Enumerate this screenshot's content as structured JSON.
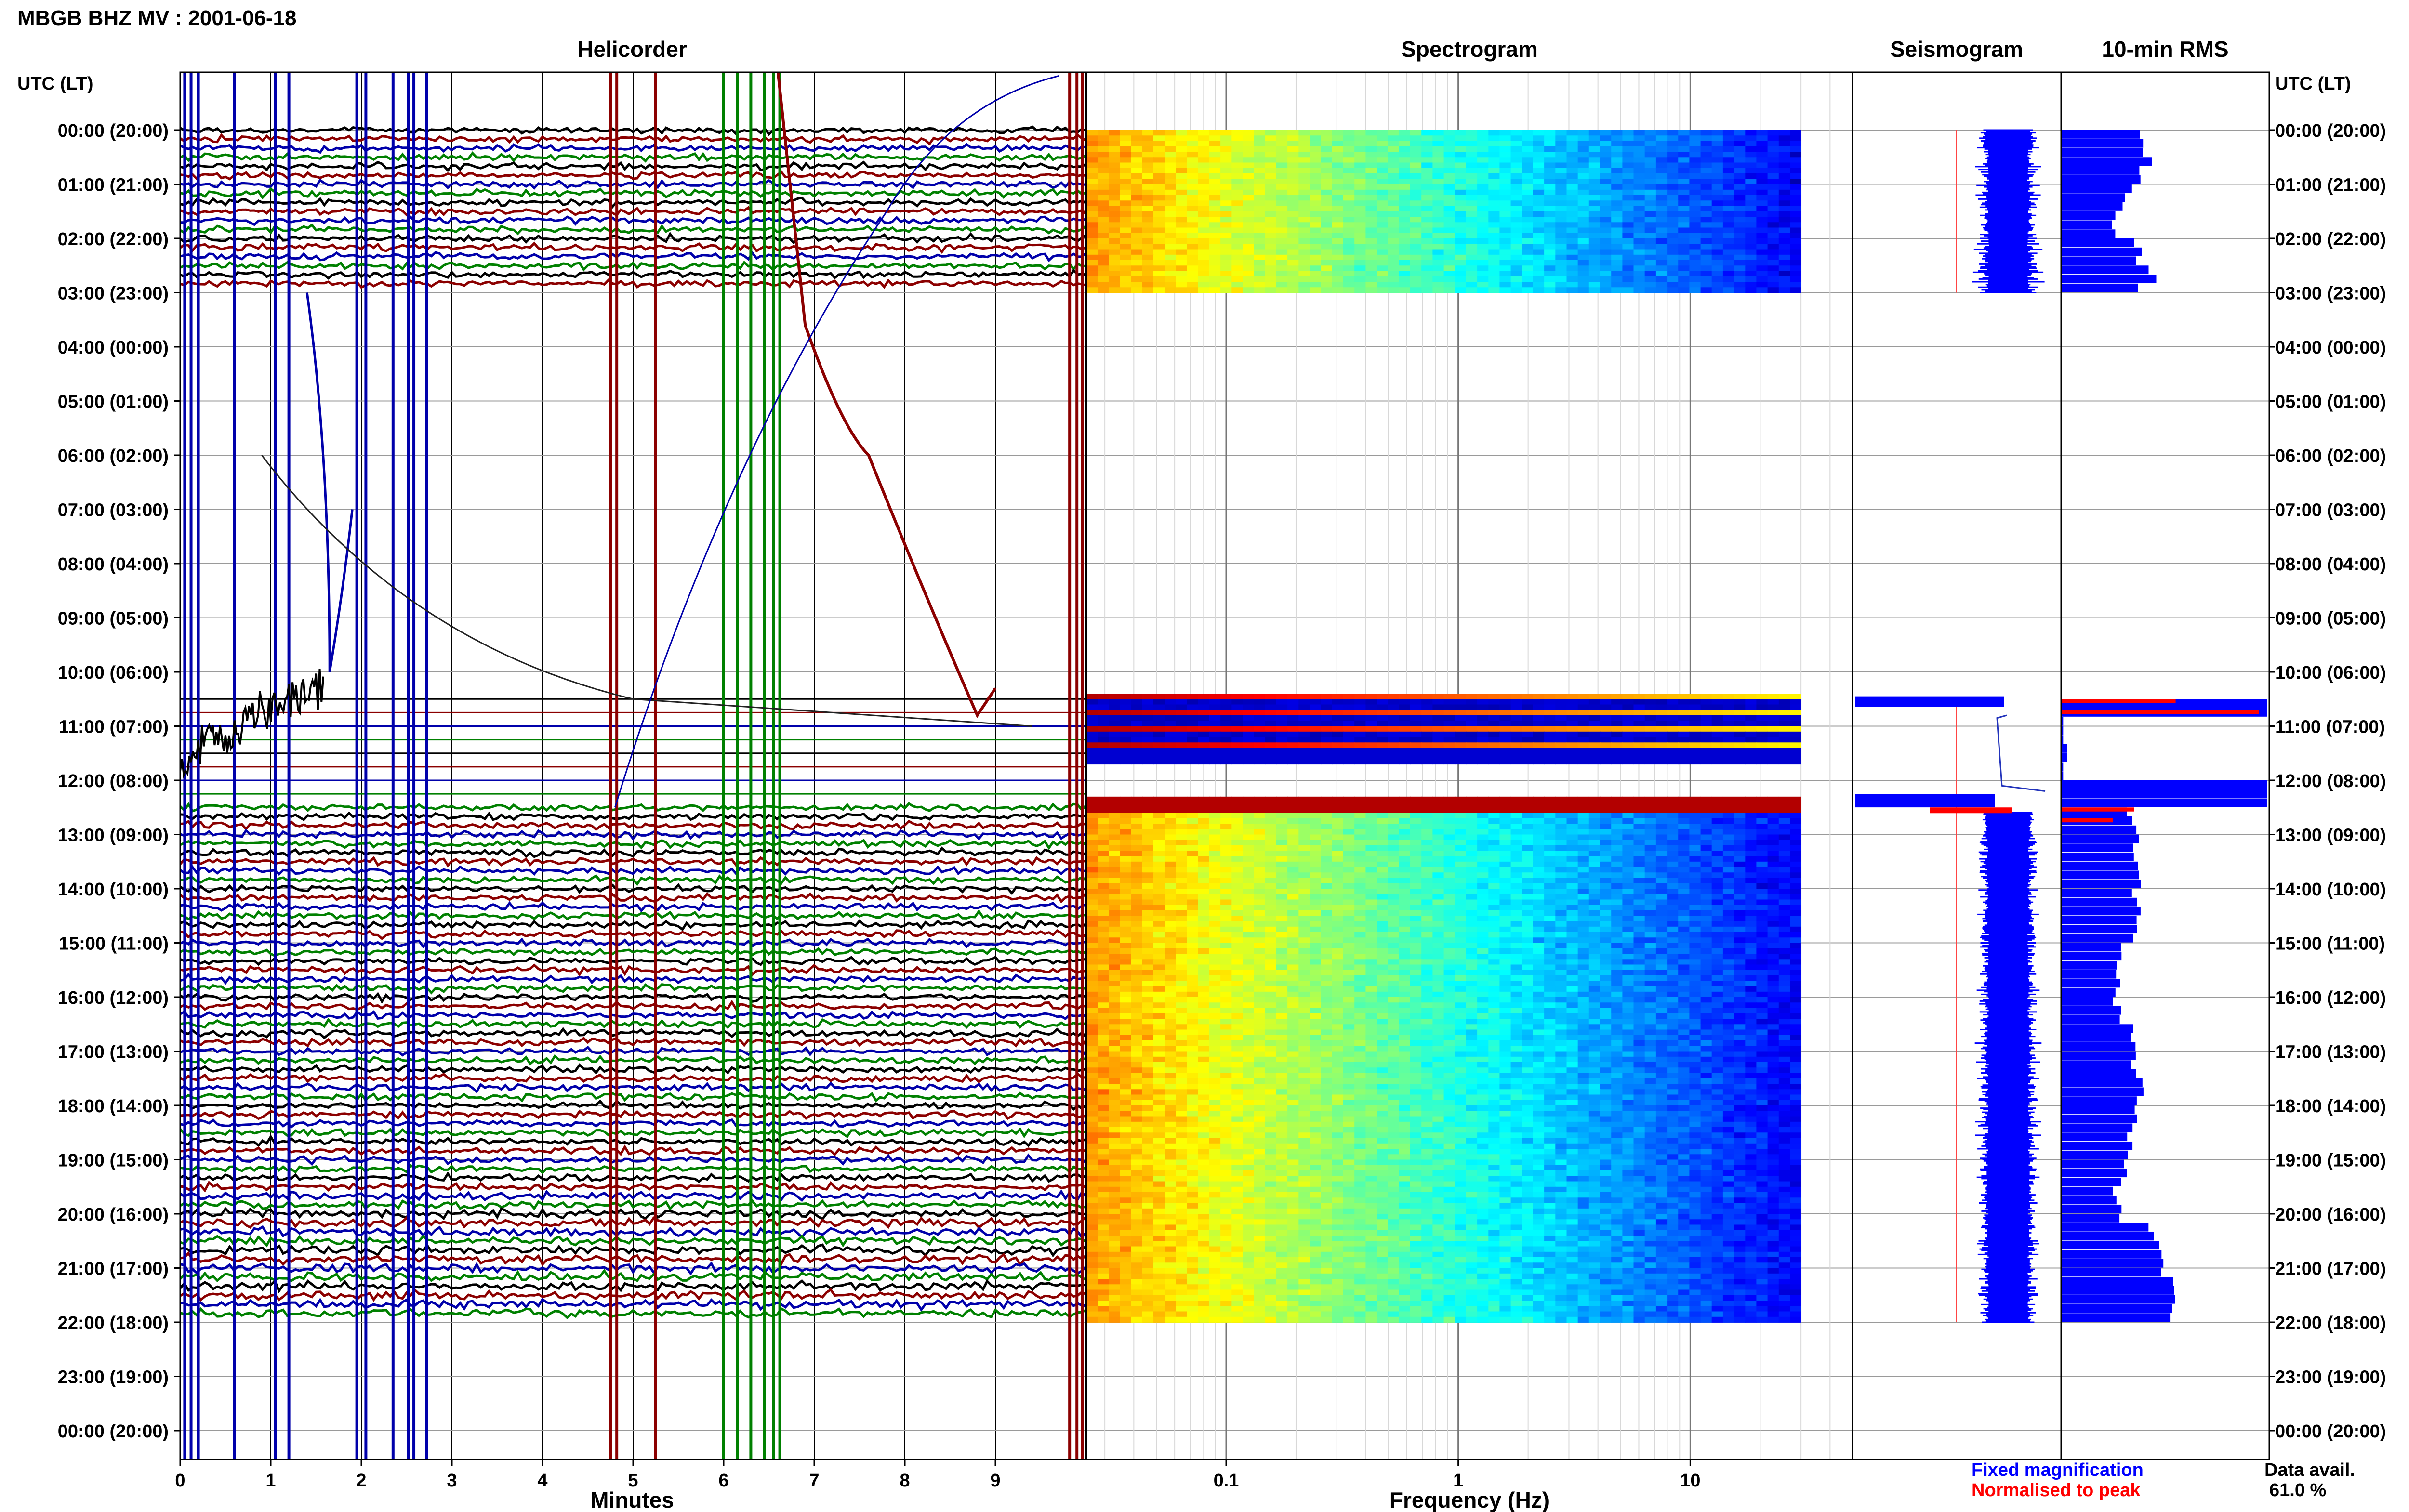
{
  "header": {
    "title": "MBGB BHZ MV : 2001-06-18",
    "utc_lt_label": "UTC (LT)"
  },
  "panels": {
    "helicorder": "Helicorder",
    "spectrogram": "Spectrogram",
    "seismogram": "Seismogram",
    "rms": "10-min RMS"
  },
  "legend": {
    "fixed": "Fixed magnification",
    "normalised": "Normalised to peak",
    "fixed_color": "#0000ff",
    "normalised_color": "#ff0000"
  },
  "availability": {
    "label": "Data avail.",
    "value": "61.0 %"
  },
  "colors": {
    "trace_black": "#000000",
    "trace_darkred": "#8b0000",
    "trace_blue": "#0000aa",
    "trace_green": "#008000",
    "rms_fill": "#0000ff",
    "rms_peak": "#ff0000"
  },
  "chart_data": [
    {
      "type": "line",
      "panel": "Helicorder",
      "xlabel": "Minutes",
      "x_ticks": [
        "0",
        "1",
        "2",
        "3",
        "4",
        "5",
        "6",
        "7",
        "8",
        "9"
      ],
      "xlim": [
        0,
        10
      ],
      "ylabel": "UTC (LT)",
      "y_ticks": [
        "00:00 (20:00)",
        "01:00 (21:00)",
        "02:00 (22:00)",
        "03:00 (23:00)",
        "04:00 (00:00)",
        "05:00 (01:00)",
        "06:00 (02:00)",
        "07:00 (03:00)",
        "08:00 (04:00)",
        "09:00 (05:00)",
        "10:00 (06:00)",
        "11:00 (07:00)",
        "12:00 (08:00)",
        "13:00 (09:00)",
        "14:00 (10:00)",
        "15:00 (11:00)",
        "16:00 (12:00)",
        "17:00 (13:00)",
        "18:00 (14:00)",
        "19:00 (15:00)",
        "20:00 (16:00)",
        "21:00 (17:00)",
        "22:00 (18:00)",
        "23:00 (19:00)",
        "00:00 (20:00)"
      ],
      "trace_colors_cycle": [
        "black",
        "darkred",
        "blue",
        "green"
      ],
      "data_segments_hours": [
        [
          0,
          3
        ],
        [
          12.5,
          22
        ]
      ],
      "gap_hours": [
        3,
        10.3
      ]
    },
    {
      "type": "heatmap",
      "panel": "Spectrogram",
      "xlabel": "Frequency (Hz)",
      "x_scale": "log",
      "x_ticks": [
        "0.1",
        "1",
        "10"
      ],
      "xlim": [
        0.025,
        50
      ],
      "colormap": "jet",
      "data_segments_hours": [
        [
          0,
          3
        ],
        [
          10.4,
          11.7
        ],
        [
          12.3,
          22
        ]
      ]
    },
    {
      "type": "line",
      "panel": "Seismogram",
      "data_segments_hours": [
        [
          0,
          3
        ],
        [
          10.5,
          12.5
        ],
        [
          12.5,
          22
        ]
      ]
    },
    {
      "type": "bar",
      "panel": "10-min RMS",
      "orientation": "horizontal",
      "bin_minutes": 10,
      "fill_color": "#0000ff",
      "peak_color": "#ff0000"
    }
  ]
}
